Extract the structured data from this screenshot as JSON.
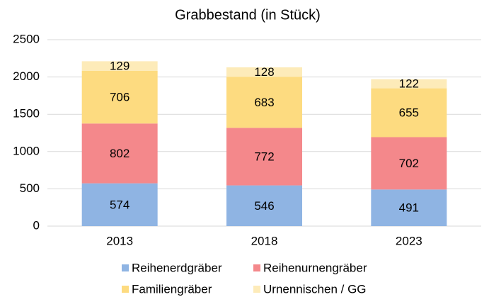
{
  "chart_data": {
    "type": "stacked_bar",
    "title": "Grabbestand (in Stück)",
    "categories": [
      "2013",
      "2018",
      "2023"
    ],
    "series": [
      {
        "name": "Reihenerdgräber",
        "color": "#8fb4e3",
        "values": [
          574,
          546,
          491
        ]
      },
      {
        "name": "Reihenurnengräber",
        "color": "#f4888b",
        "values": [
          802,
          772,
          702
        ]
      },
      {
        "name": "Familiengräber",
        "color": "#fddb80",
        "values": [
          706,
          683,
          655
        ]
      },
      {
        "name": "Urnennischen / GG",
        "color": "#fdebb9",
        "values": [
          129,
          128,
          122
        ]
      }
    ],
    "ylim": [
      0,
      2500
    ],
    "yticks": [
      0,
      500,
      1000,
      1500,
      2000,
      2500
    ],
    "grid": true
  }
}
